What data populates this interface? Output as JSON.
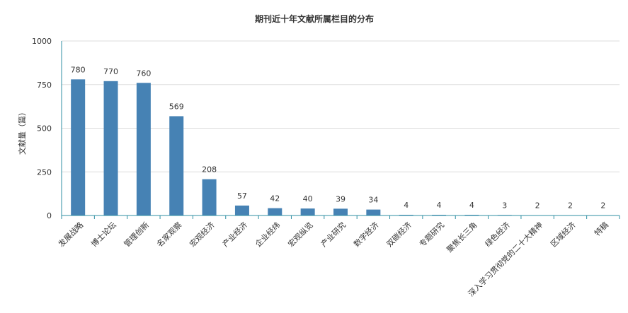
{
  "chart_data": {
    "type": "bar",
    "title": "期刊近十年文献所属栏目的分布",
    "xlabel": "",
    "ylabel": "文献量（篇）",
    "ylim": [
      0,
      1000
    ],
    "yticks": [
      0,
      250,
      500,
      750,
      1000
    ],
    "grid": true,
    "bar_color": "#4682b4",
    "categories": [
      "发展战略",
      "博士论坛",
      "管理创新",
      "名家观察",
      "宏观经济",
      "产业经济",
      "企业经纬",
      "宏观纵览",
      "产业研究",
      "数字经济",
      "双碳经济",
      "专题研究",
      "聚焦长三角",
      "绿色经济",
      "深入学习贯彻党的二十大精神",
      "区域经济",
      "特稿"
    ],
    "values": [
      780,
      770,
      760,
      569,
      208,
      57,
      42,
      40,
      39,
      34,
      4,
      4,
      4,
      3,
      2,
      2,
      2
    ]
  }
}
